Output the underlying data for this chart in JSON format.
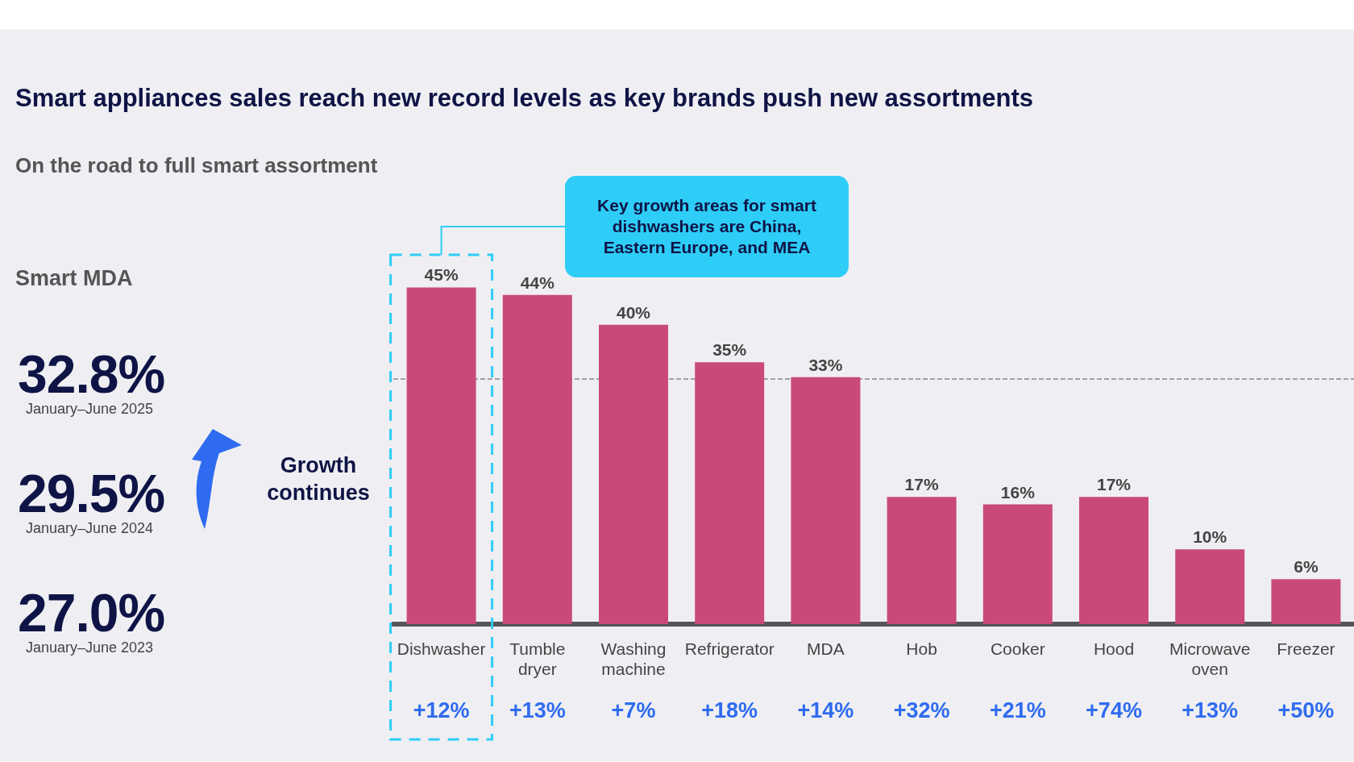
{
  "chart_data": {
    "type": "bar",
    "title": "Smart appliances sales reach new record levels as key brands push new assortments",
    "subtitle": "On the road to full smart assortment",
    "categories": [
      "Dishwasher",
      "Tumble dryer",
      "Washing machine",
      "Refrigerator",
      "MDA",
      "Hob",
      "Cooker",
      "Hood",
      "Microwave oven",
      "Freezer"
    ],
    "values": [
      45,
      44,
      40,
      35,
      33,
      17,
      16,
      17,
      10,
      6
    ],
    "value_labels": [
      "45%",
      "44%",
      "40%",
      "35%",
      "33%",
      "17%",
      "16%",
      "17%",
      "10%",
      "6%"
    ],
    "color": "#c94a78",
    "ref_lines": [
      {
        "axis": "y",
        "value": 32.8,
        "color": "#888888",
        "line_style": "dashed"
      }
    ],
    "annotations": [
      "Smart MDA",
      "32.8%",
      "January–June 2025",
      "29.5%",
      "January–June 2024",
      "27.0%",
      "January–June 2023",
      "Growth continues",
      "Key growth areas for smart dishwashers are China, Eastern Europe, and MEA",
      "+12%",
      "+13%",
      "+7%",
      "+18%",
      "+14%",
      "+32%",
      "+21%",
      "+74%",
      "+13%",
      "+50%"
    ]
  }
}
